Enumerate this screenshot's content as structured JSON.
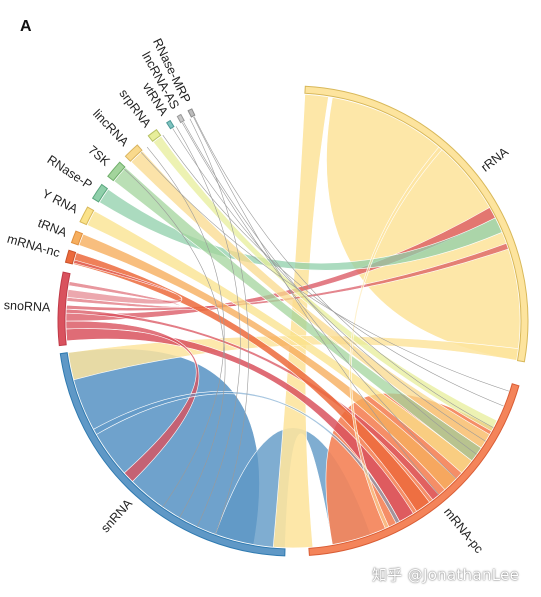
{
  "panel_label": "A",
  "watermark": "知乎 @JonathanLee",
  "diagram": {
    "type": "chord",
    "segments": [
      {
        "id": "rRNA",
        "label": "rRNA",
        "color": "#fde49e",
        "edge": "#d8b85a"
      },
      {
        "id": "mRNA-pc",
        "label": "mRNA-pc",
        "color": "#f4845a",
        "edge": "#d95d35"
      },
      {
        "id": "snRNA",
        "label": "snRNA",
        "color": "#5f98c6",
        "edge": "#2f7ab0"
      },
      {
        "id": "snoRNA",
        "label": "snoRNA",
        "color": "#d9525e",
        "edge": "#c03a48"
      },
      {
        "id": "mRNA-nc",
        "label": "mRNA-nc",
        "color": "#ec6a3c",
        "edge": "#c9532c"
      },
      {
        "id": "tRNA",
        "label": "tRNA",
        "color": "#f6ae5e",
        "edge": "#e09040"
      },
      {
        "id": "Y RNA",
        "label": "Y RNA",
        "color": "#fae28a",
        "edge": "#d8b85a"
      },
      {
        "id": "RNase-P",
        "label": "RNase-P",
        "color": "#8fcfaa",
        "edge": "#5aa67e"
      },
      {
        "id": "7SK",
        "label": "7SK",
        "color": "#a3d49c",
        "edge": "#6fae6a"
      },
      {
        "id": "lincRNA",
        "label": "lincRNA",
        "color": "#f9d98c",
        "edge": "#d9b460"
      },
      {
        "id": "srpRNA",
        "label": "srpRNA",
        "color": "#e7ee9a",
        "edge": "#b8c266"
      },
      {
        "id": "vtRNA",
        "label": "vtRNA",
        "color": "#7fc3c0",
        "edge": "#4e9a97"
      },
      {
        "id": "lncRNA-AS",
        "label": "lncRNA-AS",
        "color": "#c8c8c8",
        "edge": "#999999"
      },
      {
        "id": "RNase-MRP",
        "label": "RNase-MRP",
        "color": "#bcbcbc",
        "edge": "#8c8c8c"
      }
    ]
  }
}
